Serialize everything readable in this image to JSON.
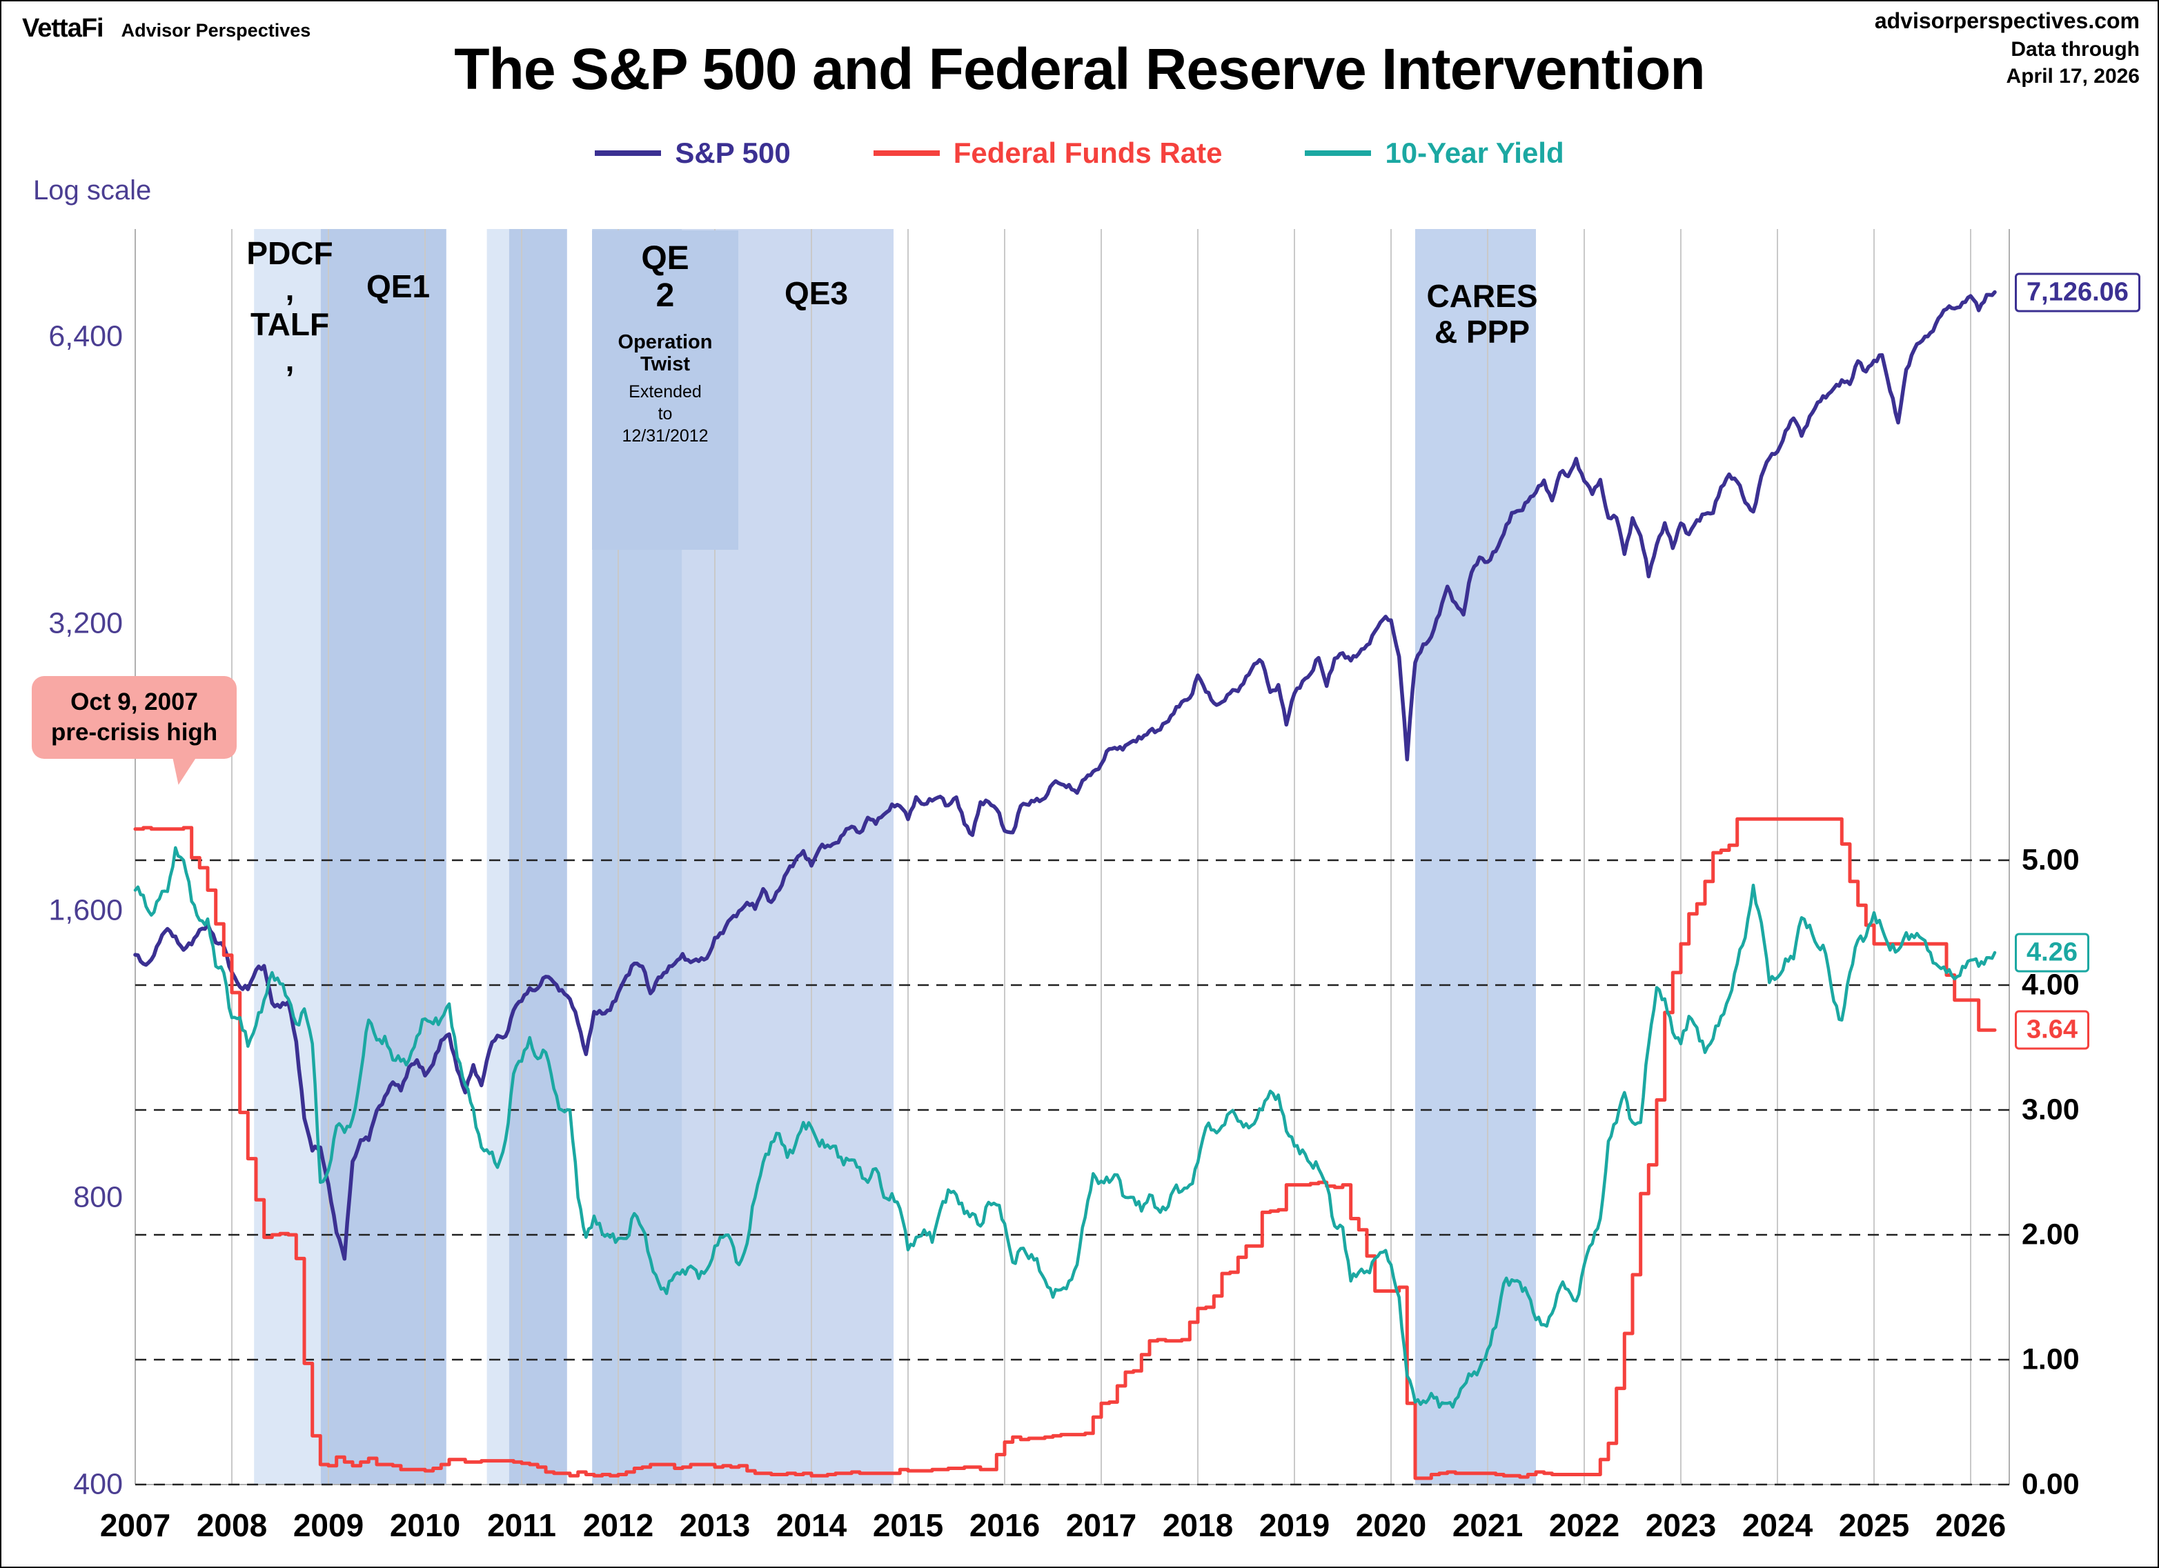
{
  "header": {
    "brand": "VettaFi",
    "brand_sub": "Advisor Perspectives",
    "title": "The S&P 500 and Federal Reserve Intervention",
    "source_site": "advisorperspectives.com",
    "data_through_label": "Data through",
    "data_through_date": "April 17, 2026"
  },
  "chart_data": {
    "type": "line",
    "title": "The S&P 500 and Federal Reserve Intervention",
    "x_start": 2007.0,
    "x_step": 0.0833333,
    "x_axis": {
      "years": [
        2007,
        2008,
        2009,
        2010,
        2011,
        2012,
        2013,
        2014,
        2015,
        2016,
        2017,
        2018,
        2019,
        2020,
        2021,
        2022,
        2023,
        2024,
        2025,
        2026
      ],
      "domain": [
        2007,
        2026.4
      ]
    },
    "left_axis": {
      "label": "Log scale",
      "scale": "log",
      "tick_values": [
        6400,
        3200,
        1600,
        800,
        400
      ],
      "tick_labels": [
        "6,400",
        "3,200",
        "1,600",
        "800",
        "400"
      ],
      "color": "#4b3e92"
    },
    "right_axis": {
      "scale": "linear",
      "tick_values": [
        5,
        4,
        3,
        2,
        1,
        0
      ],
      "tick_labels": [
        "5.00",
        "4.00",
        "3.00",
        "2.00",
        "1.00",
        "0.00"
      ],
      "color": "#000000"
    },
    "bands": [
      {
        "name": "pdcf-talf",
        "start": 2008.23,
        "end": 2008.92,
        "color": "#dce7f6"
      },
      {
        "name": "qe1",
        "start": 2008.92,
        "end": 2010.22,
        "color": "#b8cbe9"
      },
      {
        "name": "pre-qe2",
        "start": 2010.64,
        "end": 2010.87,
        "color": "#dce7f6"
      },
      {
        "name": "qe2",
        "start": 2010.87,
        "end": 2011.47,
        "color": "#b8cbe9"
      },
      {
        "name": "operation-twist",
        "start": 2011.73,
        "end": 2012.66,
        "color": "#bccfeb"
      },
      {
        "name": "qe3",
        "start": 2012.66,
        "end": 2014.85,
        "color": "#ccd9f0"
      },
      {
        "name": "cares-ppp",
        "start": 2020.25,
        "end": 2021.5,
        "color": "#c2d3ee"
      }
    ],
    "band_labels": [
      {
        "text": "PDCF\n,\nTALF\n,",
        "x_year": 2008.6,
        "y": 340
      },
      {
        "text": "QE1",
        "x_year": 2009.72,
        "y": 388
      },
      {
        "text": "QE3",
        "x_year": 2014.05,
        "y": 398
      },
      {
        "text": "CARES\n& PPP",
        "x_year": 2020.94,
        "y": 402
      }
    ],
    "annotations": {
      "qe2_label": "QE\n2",
      "twist_title": "Operation Twist",
      "twist_sub": "Extended\nto\n12/31/2012",
      "callout": "Oct 9, 2007\npre-crisis high"
    },
    "series": [
      {
        "name": "S&P 500",
        "slug": "sp500",
        "color": "#3b3092",
        "axis": "left",
        "end_label": "7,126.06",
        "width": 5.5,
        "jitter": 0.008,
        "line_style": "line",
        "values": [
          1438,
          1407,
          1421,
          1482,
          1531,
          1503,
          1455,
          1474,
          1527,
          1549,
          1481,
          1468,
          1379,
          1331,
          1323,
          1386,
          1400,
          1280,
          1267,
          1283,
          1166,
          969,
          896,
          903,
          826,
          735,
          690,
          873,
          919,
          919,
          987,
          1021,
          1057,
          1036,
          1096,
          1115,
          1074,
          1104,
          1169,
          1187,
          1089,
          1031,
          1102,
          1049,
          1141,
          1183,
          1181,
          1258,
          1286,
          1327,
          1326,
          1364,
          1345,
          1321,
          1292,
          1219,
          1131,
          1253,
          1247,
          1258,
          1312,
          1366,
          1408,
          1398,
          1310,
          1362,
          1379,
          1407,
          1441,
          1412,
          1416,
          1426,
          1498,
          1515,
          1569,
          1598,
          1631,
          1606,
          1686,
          1633,
          1682,
          1757,
          1806,
          1848,
          1783,
          1859,
          1872,
          1884,
          1924,
          1960,
          1931,
          2003,
          1972,
          2018,
          2068,
          2059,
          1995,
          2105,
          2068,
          2086,
          2107,
          2063,
          2104,
          1972,
          1920,
          2079,
          2080,
          2044,
          1940,
          1932,
          2060,
          2065,
          2097,
          2099,
          2174,
          2171,
          2168,
          2126,
          2199,
          2239,
          2279,
          2364,
          2363,
          2384,
          2412,
          2423,
          2470,
          2472,
          2519,
          2575,
          2648,
          2674,
          2824,
          2714,
          2641,
          2648,
          2705,
          2718,
          2816,
          2902,
          2914,
          2712,
          2760,
          2507,
          2704,
          2784,
          2834,
          2946,
          2752,
          2942,
          2980,
          2926,
          2977,
          3038,
          3141,
          3231,
          3226,
          2954,
          2305,
          2912,
          3044,
          3100,
          3271,
          3500,
          3363,
          3270,
          3622,
          3756,
          3714,
          3811,
          3973,
          4181,
          4204,
          4298,
          4395,
          4523,
          4308,
          4605,
          4567,
          4766,
          4516,
          4374,
          4530,
          4132,
          4132,
          3785,
          4130,
          3955,
          3586,
          3872,
          4080,
          3840,
          4077,
          3970,
          4109,
          4169,
          4180,
          4450,
          4589,
          4508,
          4288,
          4194,
          4568,
          4770,
          4846,
          5096,
          5254,
          5036,
          5278,
          5460,
          5522,
          5648,
          5762,
          5705,
          6032,
          5882,
          6041,
          6120,
          5612,
          5200,
          5912,
          6205,
          6339,
          6460,
          6688,
          6840,
          6849,
          6950,
          7060,
          6820,
          7080,
          7126.06
        ]
      },
      {
        "name": "Federal Funds Rate",
        "slug": "fed-funds-rate",
        "color": "#f5413d",
        "axis": "right",
        "end_label": "3.64",
        "width": 5,
        "jitter": 0,
        "line_style": "step",
        "values": [
          5.25,
          5.26,
          5.25,
          5.25,
          5.25,
          5.25,
          5.26,
          5.02,
          4.94,
          4.76,
          4.49,
          4.24,
          3.94,
          2.98,
          2.61,
          2.28,
          1.98,
          2.0,
          2.01,
          2.0,
          1.81,
          0.97,
          0.39,
          0.16,
          0.15,
          0.22,
          0.18,
          0.15,
          0.18,
          0.21,
          0.16,
          0.16,
          0.15,
          0.12,
          0.12,
          0.12,
          0.11,
          0.13,
          0.16,
          0.2,
          0.2,
          0.18,
          0.18,
          0.19,
          0.19,
          0.19,
          0.19,
          0.18,
          0.17,
          0.16,
          0.14,
          0.1,
          0.09,
          0.09,
          0.07,
          0.1,
          0.08,
          0.07,
          0.08,
          0.07,
          0.08,
          0.1,
          0.13,
          0.14,
          0.16,
          0.16,
          0.16,
          0.13,
          0.14,
          0.16,
          0.16,
          0.16,
          0.14,
          0.15,
          0.14,
          0.15,
          0.11,
          0.09,
          0.09,
          0.08,
          0.08,
          0.09,
          0.08,
          0.09,
          0.07,
          0.07,
          0.08,
          0.09,
          0.09,
          0.1,
          0.09,
          0.09,
          0.09,
          0.09,
          0.09,
          0.12,
          0.11,
          0.11,
          0.11,
          0.12,
          0.12,
          0.13,
          0.13,
          0.14,
          0.14,
          0.12,
          0.12,
          0.24,
          0.34,
          0.38,
          0.36,
          0.37,
          0.37,
          0.38,
          0.39,
          0.4,
          0.4,
          0.4,
          0.41,
          0.54,
          0.65,
          0.66,
          0.79,
          0.9,
          0.91,
          1.04,
          1.15,
          1.16,
          1.15,
          1.15,
          1.16,
          1.3,
          1.41,
          1.42,
          1.51,
          1.69,
          1.7,
          1.82,
          1.91,
          1.91,
          2.18,
          2.19,
          2.2,
          2.4,
          2.4,
          2.4,
          2.41,
          2.42,
          2.39,
          2.38,
          2.4,
          2.13,
          2.04,
          1.83,
          1.55,
          1.55,
          1.55,
          1.58,
          0.65,
          0.05,
          0.05,
          0.08,
          0.09,
          0.1,
          0.09,
          0.09,
          0.09,
          0.09,
          0.09,
          0.08,
          0.07,
          0.07,
          0.06,
          0.08,
          0.1,
          0.09,
          0.08,
          0.08,
          0.08,
          0.08,
          0.08,
          0.08,
          0.2,
          0.33,
          0.77,
          1.21,
          1.68,
          2.33,
          2.56,
          3.08,
          3.78,
          4.1,
          4.33,
          4.57,
          4.65,
          4.83,
          5.06,
          5.08,
          5.12,
          5.33,
          5.33,
          5.33,
          5.33,
          5.33,
          5.33,
          5.33,
          5.33,
          5.33,
          5.33,
          5.33,
          5.33,
          5.33,
          5.13,
          4.83,
          4.64,
          4.48,
          4.33,
          4.33,
          4.33,
          4.33,
          4.33,
          4.33,
          4.33,
          4.33,
          4.33,
          4.08,
          3.88,
          3.88,
          3.88,
          3.64,
          3.64,
          3.64
        ]
      },
      {
        "name": "10-Year Yield",
        "slug": "ten-year-yield",
        "color": "#1ba8a2",
        "axis": "right",
        "end_label": "4.26",
        "width": 4.5,
        "jitter": 0.05,
        "line_style": "line",
        "values": [
          4.76,
          4.72,
          4.56,
          4.69,
          4.75,
          5.1,
          5.0,
          4.67,
          4.52,
          4.53,
          4.15,
          4.1,
          3.74,
          3.74,
          3.51,
          3.68,
          3.88,
          4.1,
          4.01,
          3.89,
          3.69,
          3.81,
          3.53,
          2.42,
          2.52,
          2.87,
          2.82,
          2.93,
          3.29,
          3.72,
          3.56,
          3.59,
          3.4,
          3.39,
          3.4,
          3.59,
          3.73,
          3.69,
          3.73,
          3.85,
          3.42,
          3.2,
          3.01,
          2.7,
          2.65,
          2.54,
          2.76,
          3.29,
          3.39,
          3.58,
          3.41,
          3.46,
          3.17,
          3.0,
          3.0,
          2.3,
          1.98,
          2.15,
          2.01,
          1.98,
          1.97,
          1.97,
          2.17,
          2.05,
          1.8,
          1.62,
          1.53,
          1.68,
          1.72,
          1.75,
          1.65,
          1.72,
          1.91,
          1.98,
          1.96,
          1.76,
          1.93,
          2.3,
          2.58,
          2.74,
          2.81,
          2.62,
          2.72,
          2.9,
          2.86,
          2.71,
          2.72,
          2.71,
          2.56,
          2.6,
          2.54,
          2.42,
          2.53,
          2.3,
          2.33,
          2.21,
          1.88,
          1.98,
          2.04,
          1.94,
          2.2,
          2.36,
          2.32,
          2.17,
          2.17,
          2.07,
          2.26,
          2.24,
          2.09,
          1.78,
          1.89,
          1.81,
          1.81,
          1.64,
          1.5,
          1.56,
          1.63,
          1.76,
          2.14,
          2.49,
          2.43,
          2.42,
          2.48,
          2.3,
          2.3,
          2.19,
          2.32,
          2.21,
          2.2,
          2.36,
          2.35,
          2.4,
          2.58,
          2.86,
          2.84,
          2.87,
          2.98,
          2.91,
          2.89,
          2.89,
          3.0,
          3.15,
          3.12,
          2.83,
          2.71,
          2.68,
          2.57,
          2.53,
          2.4,
          2.07,
          2.06,
          1.63,
          1.7,
          1.71,
          1.81,
          1.86,
          1.76,
          1.5,
          0.87,
          0.66,
          0.67,
          0.73,
          0.62,
          0.65,
          0.68,
          0.79,
          0.87,
          0.93,
          1.08,
          1.26,
          1.61,
          1.64,
          1.62,
          1.52,
          1.32,
          1.28,
          1.37,
          1.58,
          1.56,
          1.47,
          1.76,
          1.93,
          2.13,
          2.75,
          2.9,
          3.14,
          2.9,
          2.9,
          3.52,
          3.98,
          3.89,
          3.62,
          3.53,
          3.75,
          3.66,
          3.46,
          3.57,
          3.75,
          3.9,
          4.17,
          4.38,
          4.8,
          4.5,
          4.02,
          4.06,
          4.21,
          4.21,
          4.54,
          4.48,
          4.31,
          4.25,
          3.87,
          3.72,
          4.1,
          4.36,
          4.39,
          4.58,
          4.45,
          4.28,
          4.28,
          4.42,
          4.38,
          4.37,
          4.26,
          4.15,
          4.1,
          4.05,
          4.15,
          4.2,
          4.15,
          4.22,
          4.26
        ]
      }
    ]
  }
}
